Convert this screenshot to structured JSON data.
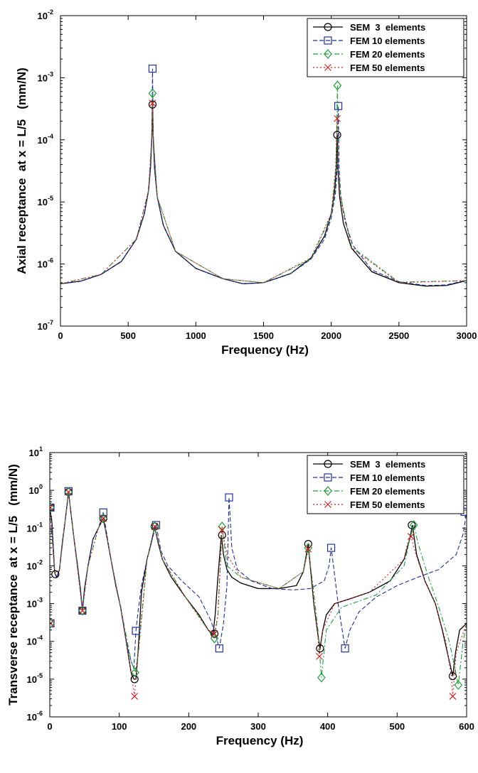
{
  "chart_data": [
    {
      "type": "line",
      "xlabel": "Frequency (Hz)",
      "ylabel": "Axial receptance  at x = L/5   (mm/N)",
      "xlim": [
        0,
        3000
      ],
      "ylim_exp": [
        -7,
        -2
      ],
      "yscale": "log",
      "grid": false,
      "legend_position": "top-right",
      "xticks": [
        "0",
        "500",
        "1000",
        "1500",
        "2000",
        "2500",
        "3000"
      ],
      "yticks": [
        {
          "base": "10",
          "exp": "-7"
        },
        {
          "base": "10",
          "exp": "-6"
        },
        {
          "base": "10",
          "exp": "-5"
        },
        {
          "base": "10",
          "exp": "-4"
        },
        {
          "base": "10",
          "exp": "-3"
        },
        {
          "base": "10",
          "exp": "-2"
        }
      ],
      "series": [
        {
          "name": "SEM  3  elements",
          "color": "#000000",
          "marker": "circle",
          "dash": "",
          "x": [
            0,
            150,
            300,
            450,
            560,
            620,
            650,
            665,
            675,
            680,
            685,
            695,
            715,
            760,
            850,
            1000,
            1200,
            1350,
            1500,
            1700,
            1850,
            1950,
            2000,
            2025,
            2038,
            2044,
            2050,
            2062,
            2090,
            2150,
            2300,
            2500,
            2700,
            2850,
            3000
          ],
          "y": [
            4.8e-07,
            5.3e-07,
            6.8e-07,
            1.1e-06,
            2.5e-06,
            6.5e-06,
            1.5e-05,
            3.5e-05,
            0.00011,
            0.00037,
            0.00011,
            3.5e-05,
            1.2e-05,
            4.2e-06,
            1.6e-06,
            8.5e-07,
            5.8e-07,
            4.8e-07,
            5e-07,
            7e-07,
            1.25e-06,
            2.8e-06,
            6.5e-06,
            1.5e-05,
            3.5e-05,
            0.00012,
            3.3e-05,
            1.2e-05,
            4.5e-06,
            1.8e-06,
            7.5e-07,
            5e-07,
            4.4e-07,
            4.5e-07,
            5.4e-07
          ],
          "markers_x": [
            680,
            2044
          ],
          "markers_y": [
            0.00037,
            0.00012
          ]
        },
        {
          "name": "FEM 10 elements",
          "color": "#1f2f9f",
          "marker": "square",
          "dash": "6,3",
          "x": [
            0,
            150,
            300,
            450,
            560,
            620,
            650,
            665,
            675,
            680,
            685,
            695,
            715,
            760,
            850,
            1000,
            1200,
            1350,
            1500,
            1700,
            1850,
            1950,
            2000,
            2030,
            2045,
            2052,
            2058,
            2070,
            2100,
            2160,
            2300,
            2500,
            2700,
            2850,
            3000
          ],
          "y": [
            4.8e-07,
            5.3e-07,
            6.8e-07,
            1.1e-06,
            2.5e-06,
            6.5e-06,
            1.5e-05,
            3.5e-05,
            0.00013,
            0.0014,
            0.00013,
            3.5e-05,
            1.2e-05,
            4.2e-06,
            1.6e-06,
            8.5e-07,
            5.8e-07,
            4.8e-07,
            5e-07,
            7e-07,
            1.2e-06,
            2.5e-06,
            5.5e-06,
            1.3e-05,
            3.5e-05,
            0.00035,
            3.5e-05,
            1.3e-05,
            5e-06,
            2e-06,
            8e-07,
            5.2e-07,
            4.5e-07,
            4.6e-07,
            5.5e-07
          ],
          "markers_x": [
            680,
            2052
          ],
          "markers_y": [
            0.0014,
            0.00035
          ]
        },
        {
          "name": "FEM 20 elements",
          "color": "#1f9f3a",
          "marker": "diamond",
          "dash": "7,3,2,3",
          "x": [
            0,
            300,
            560,
            650,
            675,
            680,
            685,
            715,
            850,
            1200,
            1500,
            1850,
            2000,
            2035,
            2046,
            2052,
            2070,
            2150,
            2500,
            3000
          ],
          "y": [
            4.8e-07,
            6.8e-07,
            2.5e-06,
            1.5e-05,
            0.00012,
            0.00056,
            0.00012,
            1.2e-05,
            1.6e-06,
            5.8e-07,
            5e-07,
            1.2e-06,
            6e-06,
            3.5e-05,
            0.00075,
            3.5e-05,
            1.2e-05,
            1.9e-06,
            5.1e-07,
            5.4e-07
          ],
          "markers_x": [
            680,
            2046
          ],
          "markers_y": [
            0.00056,
            0.00075
          ]
        },
        {
          "name": "FEM 50 elements",
          "color": "#d42020",
          "marker": "x",
          "dash": "2,3",
          "x": [
            0,
            300,
            560,
            650,
            675,
            680,
            685,
            715,
            850,
            1200,
            1500,
            1850,
            2000,
            2032,
            2044,
            2050,
            2065,
            2150,
            2500,
            3000
          ],
          "y": [
            4.8e-07,
            6.8e-07,
            2.5e-06,
            1.5e-05,
            0.00011,
            0.00039,
            0.00011,
            1.2e-05,
            1.6e-06,
            5.8e-07,
            5e-07,
            1.25e-06,
            6.5e-06,
            3.5e-05,
            0.00022,
            3.5e-05,
            1.2e-05,
            1.8e-06,
            5e-07,
            5.4e-07
          ],
          "markers_x": [
            680,
            2044
          ],
          "markers_y": [
            0.00039,
            0.00022
          ]
        }
      ]
    },
    {
      "type": "line",
      "xlabel": "Frequency (Hz)",
      "ylabel": "Transverse receptance  at x = L/5   (mm/N)",
      "xlim": [
        0,
        600
      ],
      "ylim_exp": [
        -6,
        1
      ],
      "yscale": "log",
      "grid": false,
      "legend_position": "top-right",
      "xticks": [
        "0",
        "100",
        "200",
        "300",
        "400",
        "500",
        "600"
      ],
      "yticks": [
        {
          "base": "10",
          "exp": "-6"
        },
        {
          "base": "10",
          "exp": "-5"
        },
        {
          "base": "10",
          "exp": "-4"
        },
        {
          "base": "10",
          "exp": "-3"
        },
        {
          "base": "10",
          "exp": "-2"
        },
        {
          "base": "10",
          "exp": "-1"
        },
        {
          "base": "10",
          "exp": "0"
        },
        {
          "base": "10",
          "exp": "1"
        }
      ],
      "series": [
        {
          "name": "SEM  3  elements",
          "color": "#000000",
          "marker": "circle",
          "dash": "",
          "x": [
            0,
            3,
            7,
            10,
            14,
            18,
            22,
            27,
            30,
            35,
            40,
            44,
            47,
            50,
            55,
            62,
            70,
            77,
            82,
            88,
            95,
            102,
            110,
            117,
            121,
            124,
            127,
            132,
            140,
            146,
            151,
            156,
            162,
            175,
            195,
            215,
            228,
            235,
            238,
            242,
            247,
            250,
            255,
            262,
            275,
            300,
            330,
            355,
            365,
            372,
            375,
            380,
            385,
            389,
            393,
            398,
            410,
            430,
            460,
            490,
            510,
            518,
            522,
            528,
            540,
            555,
            565,
            575,
            580,
            584,
            590,
            600
          ],
          "y": [
            0.35,
            0.15,
            0.0065,
            0.005,
            0.008,
            0.04,
            0.15,
            0.9,
            0.3,
            0.05,
            0.01,
            0.0025,
            0.00065,
            0.0025,
            0.01,
            0.05,
            0.1,
            0.18,
            0.06,
            0.015,
            0.003,
            0.0008,
            0.0001,
            1.5e-05,
            1e-05,
            1e-05,
            5e-05,
            0.002,
            0.015,
            0.04,
            0.11,
            0.04,
            0.015,
            0.005,
            0.0015,
            0.0005,
            0.0002,
            0.00015,
            0.0005,
            0.005,
            0.065,
            0.02,
            0.008,
            0.005,
            0.0035,
            0.0025,
            0.0025,
            0.003,
            0.007,
            0.038,
            0.01,
            0.001,
            0.0002,
            6.5e-05,
            0.0002,
            0.0005,
            0.001,
            0.0013,
            0.002,
            0.004,
            0.015,
            0.05,
            0.12,
            0.02,
            0.004,
            0.001,
            0.0002,
            3e-05,
            1.2e-05,
            5e-05,
            0.0002,
            0.0003
          ],
          "markers_x": [
            1,
            8,
            27,
            47,
            77,
            122,
            151,
            237,
            248,
            372,
            389,
            521,
            580
          ],
          "markers_y": [
            0.35,
            0.006,
            0.9,
            0.00065,
            0.18,
            1e-05,
            0.11,
            0.00016,
            0.065,
            0.038,
            6.5e-05,
            0.12,
            1.2e-05
          ]
        },
        {
          "name": "FEM 10 elements",
          "color": "#1f2f9f",
          "marker": "square",
          "dash": "6,3",
          "x": [
            0,
            3,
            7,
            10,
            14,
            18,
            22,
            27,
            30,
            35,
            40,
            44,
            47,
            50,
            55,
            62,
            70,
            77,
            82,
            88,
            95,
            102,
            110,
            117,
            121,
            124,
            127,
            132,
            140,
            146,
            153,
            160,
            170,
            190,
            215,
            232,
            240,
            244,
            250,
            255,
            258,
            262,
            270,
            290,
            320,
            350,
            375,
            395,
            402,
            405,
            409,
            415,
            425,
            432,
            445,
            470,
            500,
            530,
            560,
            585,
            595,
            600
          ],
          "y": [
            0.35,
            0.15,
            0.0065,
            0.005,
            0.008,
            0.04,
            0.15,
            0.95,
            0.3,
            0.05,
            0.01,
            0.0025,
            0.00065,
            0.0025,
            0.01,
            0.05,
            0.1,
            0.26,
            0.07,
            0.015,
            0.003,
            0.0008,
            0.0001,
            3e-05,
            1.9e-05,
            0.00019,
            0.0006,
            0.003,
            0.015,
            0.04,
            0.12,
            0.025,
            0.01,
            0.004,
            0.0015,
            0.00035,
            0.00012,
            6.5e-05,
            0.0003,
            0.003,
            0.65,
            0.03,
            0.008,
            0.004,
            0.0025,
            0.0023,
            0.0025,
            0.004,
            0.01,
            0.03,
            0.008,
            0.001,
            6.5e-05,
            0.0002,
            0.0006,
            0.0015,
            0.003,
            0.005,
            0.008,
            0.02,
            0.07,
            0.27
          ],
          "markers_x": [
            1,
            1,
            27,
            47,
            77,
            124,
            153,
            244,
            258,
            405,
            425,
            597
          ],
          "markers_y": [
            0.35,
            0.0003,
            0.95,
            0.00065,
            0.26,
            0.00019,
            0.12,
            6.5e-05,
            0.65,
            0.03,
            6.5e-05,
            0.27
          ]
        },
        {
          "name": "FEM 20 elements",
          "color": "#1f9f3a",
          "marker": "diamond",
          "dash": "7,3,2,3",
          "x": [
            0,
            7,
            14,
            22,
            27,
            35,
            47,
            55,
            70,
            77,
            88,
            102,
            117,
            123,
            128,
            140,
            151,
            162,
            195,
            228,
            237,
            242,
            248,
            255,
            275,
            330,
            365,
            372,
            380,
            386,
            391,
            398,
            420,
            470,
            510,
            518,
            524,
            530,
            545,
            560,
            575,
            583,
            588,
            595,
            600
          ],
          "y": [
            0.35,
            0.0065,
            0.008,
            0.15,
            0.9,
            0.05,
            0.00065,
            0.01,
            0.1,
            0.18,
            0.015,
            0.0008,
            3e-05,
            1.5e-05,
            6e-05,
            0.015,
            0.11,
            0.015,
            0.0015,
            0.0002,
            0.00012,
            0.0005,
            0.11,
            0.01,
            0.005,
            0.0025,
            0.007,
            0.03,
            0.002,
            0.0002,
            1.1e-05,
            0.0002,
            0.0008,
            0.0017,
            0.01,
            0.05,
            0.12,
            0.04,
            0.005,
            0.0008,
            0.0001,
            2e-05,
            7e-06,
            0.0001,
            0.0003
          ],
          "markers_x": [
            1,
            1,
            27,
            47,
            77,
            123,
            151,
            237,
            248,
            372,
            391,
            524,
            588
          ],
          "markers_y": [
            0.35,
            0.0003,
            0.9,
            0.00065,
            0.18,
            1.5e-05,
            0.11,
            0.00012,
            0.11,
            0.03,
            1.1e-05,
            0.12,
            7e-06
          ]
        },
        {
          "name": "FEM 50 elements",
          "color": "#d42020",
          "marker": "x",
          "dash": "2,3",
          "x": [
            0,
            7,
            14,
            22,
            27,
            35,
            47,
            55,
            70,
            77,
            88,
            102,
            117,
            122,
            127,
            140,
            151,
            162,
            195,
            228,
            237,
            242,
            248,
            255,
            275,
            330,
            365,
            372,
            380,
            385,
            388,
            393,
            410,
            460,
            510,
            515,
            520,
            527,
            540,
            555,
            570,
            578,
            580,
            585,
            600
          ],
          "y": [
            0.35,
            0.0065,
            0.008,
            0.15,
            0.9,
            0.05,
            0.00065,
            0.01,
            0.1,
            0.18,
            0.015,
            0.0008,
            1.5e-05,
            3.5e-06,
            5e-05,
            0.015,
            0.11,
            0.015,
            0.0015,
            0.0002,
            0.00016,
            0.0005,
            0.09,
            0.02,
            0.005,
            0.0025,
            0.007,
            0.028,
            0.001,
            0.0002,
            4e-05,
            0.0002,
            0.001,
            0.002,
            0.015,
            0.04,
            0.06,
            0.02,
            0.004,
            0.001,
            0.0001,
            1.2e-05,
            3.5e-06,
            5e-05,
            0.0003
          ],
          "markers_x": [
            1,
            1,
            27,
            47,
            77,
            122,
            151,
            237,
            248,
            372,
            388,
            520,
            580
          ],
          "markers_y": [
            0.35,
            0.0003,
            0.9,
            0.00065,
            0.18,
            3.5e-06,
            0.11,
            0.00016,
            0.09,
            0.028,
            4e-05,
            0.06,
            3.5e-06
          ]
        }
      ]
    }
  ]
}
